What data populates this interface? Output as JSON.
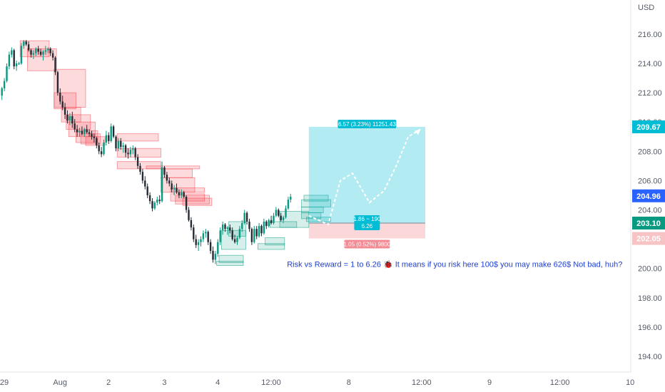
{
  "chart_data": {
    "type": "candlestick",
    "title": "",
    "currency": "USD",
    "y_ticks": [
      "216.00",
      "214.00",
      "212.00",
      "210.00",
      "208.00",
      "206.00",
      "204.00",
      "202.00",
      "200.00",
      "198.00",
      "196.00",
      "194.00"
    ],
    "ylim": [
      193,
      217.5
    ],
    "x_ticks": [
      {
        "label": "29",
        "i": 0
      },
      {
        "label": "Aug",
        "i": 23
      },
      {
        "label": "2",
        "i": 43
      },
      {
        "label": "3",
        "i": 66
      },
      {
        "label": "4",
        "i": 88
      },
      {
        "label": "12:00",
        "i": 110
      },
      {
        "label": "8",
        "i": 142
      },
      {
        "label": "12:00",
        "i": 172
      },
      {
        "label": "9",
        "i": 200
      },
      {
        "label": "12:00",
        "i": 229
      },
      {
        "label": "10",
        "i": 258
      }
    ],
    "candles": [
      [
        211.8,
        212.4,
        211.5,
        212.3
      ],
      [
        212.3,
        213.0,
        212.1,
        212.8
      ],
      [
        212.8,
        214.0,
        212.7,
        213.8
      ],
      [
        213.8,
        214.8,
        213.6,
        214.6
      ],
      [
        214.6,
        215.1,
        214.4,
        214.9
      ],
      [
        214.9,
        215.0,
        213.6,
        213.8
      ],
      [
        213.8,
        214.2,
        213.5,
        214.0
      ],
      [
        214.0,
        214.1,
        213.9,
        214.0
      ],
      [
        214.0,
        215.4,
        213.9,
        215.2
      ],
      [
        215.2,
        215.6,
        215.0,
        215.5
      ],
      [
        215.5,
        215.6,
        215.2,
        215.3
      ],
      [
        215.3,
        215.5,
        214.8,
        214.9
      ],
      [
        214.9,
        215.0,
        214.4,
        214.6
      ],
      [
        214.6,
        214.9,
        214.3,
        214.7
      ],
      [
        214.7,
        215.1,
        214.5,
        215.0
      ],
      [
        215.0,
        215.2,
        214.6,
        214.8
      ],
      [
        214.8,
        215.0,
        214.5,
        214.6
      ],
      [
        214.6,
        214.9,
        214.2,
        214.8
      ],
      [
        214.8,
        215.2,
        214.6,
        214.9
      ],
      [
        214.9,
        215.1,
        214.7,
        215.0
      ],
      [
        215.0,
        215.1,
        214.5,
        214.7
      ],
      [
        214.7,
        214.9,
        214.2,
        214.4
      ],
      [
        214.4,
        214.5,
        213.2,
        213.4
      ],
      [
        213.4,
        213.5,
        211.8,
        212.0
      ],
      [
        212.0,
        212.3,
        211.2,
        211.4
      ],
      [
        211.4,
        211.8,
        210.8,
        211.0
      ],
      [
        211.0,
        211.3,
        210.2,
        210.5
      ],
      [
        210.5,
        210.8,
        209.9,
        210.1
      ],
      [
        210.1,
        210.6,
        209.8,
        210.4
      ],
      [
        210.4,
        210.7,
        209.6,
        209.9
      ],
      [
        209.9,
        210.2,
        209.3,
        209.5
      ],
      [
        209.5,
        209.8,
        209.0,
        209.3
      ],
      [
        209.3,
        209.6,
        209.0,
        209.4
      ],
      [
        209.4,
        209.7,
        209.1,
        209.2
      ],
      [
        209.2,
        209.6,
        209.0,
        209.5
      ],
      [
        209.5,
        209.8,
        209.2,
        209.3
      ],
      [
        209.3,
        209.5,
        209.0,
        209.2
      ],
      [
        209.2,
        209.4,
        208.8,
        209.0
      ],
      [
        209.0,
        209.2,
        208.6,
        208.9
      ],
      [
        208.9,
        209.0,
        208.2,
        208.4
      ],
      [
        208.4,
        208.6,
        207.8,
        208.0
      ],
      [
        208.0,
        208.3,
        207.6,
        207.8
      ],
      [
        207.8,
        208.8,
        207.7,
        208.6
      ],
      [
        208.6,
        209.4,
        208.4,
        209.1
      ],
      [
        209.1,
        209.3,
        208.5,
        208.7
      ],
      [
        208.7,
        209.9,
        208.6,
        209.7
      ],
      [
        209.7,
        209.8,
        208.9,
        209.0
      ],
      [
        209.0,
        209.1,
        208.0,
        208.2
      ],
      [
        208.2,
        208.9,
        208.0,
        208.7
      ],
      [
        208.7,
        208.9,
        208.1,
        208.3
      ],
      [
        208.3,
        208.6,
        207.9,
        208.4
      ],
      [
        208.4,
        208.5,
        207.6,
        207.9
      ],
      [
        207.9,
        208.2,
        207.5,
        207.8
      ],
      [
        207.8,
        208.3,
        207.6,
        208.1
      ],
      [
        208.1,
        208.4,
        207.8,
        208.2
      ],
      [
        208.2,
        208.3,
        207.4,
        207.6
      ],
      [
        207.6,
        207.8,
        206.8,
        207.0
      ],
      [
        207.0,
        207.2,
        206.4,
        206.6
      ],
      [
        206.6,
        206.8,
        205.8,
        206.0
      ],
      [
        206.0,
        206.3,
        205.4,
        205.6
      ],
      [
        205.6,
        205.8,
        204.8,
        205.0
      ],
      [
        205.0,
        205.2,
        204.4,
        204.6
      ],
      [
        204.6,
        204.8,
        203.9,
        204.1
      ],
      [
        204.1,
        204.6,
        204.0,
        204.5
      ],
      [
        204.5,
        204.9,
        204.3,
        204.7
      ],
      [
        204.7,
        205.0,
        204.4,
        204.6
      ],
      [
        204.6,
        207.3,
        204.5,
        206.9
      ],
      [
        206.9,
        207.0,
        206.2,
        206.4
      ],
      [
        206.4,
        206.6,
        205.8,
        206.0
      ],
      [
        206.0,
        206.2,
        205.6,
        205.8
      ],
      [
        205.8,
        206.0,
        205.2,
        205.4
      ],
      [
        205.4,
        205.7,
        205.0,
        205.5
      ],
      [
        205.5,
        205.8,
        205.1,
        205.2
      ],
      [
        205.2,
        205.4,
        204.8,
        205.0
      ],
      [
        205.0,
        205.4,
        204.8,
        205.2
      ],
      [
        205.2,
        205.3,
        204.8,
        204.9
      ],
      [
        204.9,
        205.0,
        203.8,
        204.0
      ],
      [
        204.0,
        204.2,
        203.2,
        203.3
      ],
      [
        203.3,
        203.5,
        202.6,
        202.8
      ],
      [
        202.8,
        203.0,
        201.8,
        202.0
      ],
      [
        202.0,
        202.3,
        201.4,
        201.6
      ],
      [
        201.6,
        202.0,
        201.2,
        201.8
      ],
      [
        201.8,
        202.2,
        201.5,
        202.0
      ],
      [
        202.0,
        202.6,
        201.8,
        202.4
      ],
      [
        202.4,
        202.7,
        202.1,
        202.5
      ],
      [
        202.5,
        202.6,
        201.6,
        201.8
      ],
      [
        201.8,
        202.0,
        201.0,
        201.2
      ],
      [
        201.2,
        201.5,
        200.4,
        200.6
      ],
      [
        200.6,
        201.2,
        200.3,
        201.0
      ],
      [
        201.0,
        202.0,
        200.8,
        201.8
      ],
      [
        201.8,
        202.8,
        201.6,
        202.6
      ],
      [
        202.6,
        203.2,
        202.3,
        203.0
      ],
      [
        203.0,
        203.1,
        202.5,
        202.7
      ],
      [
        202.7,
        202.9,
        202.3,
        202.8
      ],
      [
        202.8,
        203.0,
        202.4,
        202.6
      ],
      [
        202.6,
        202.8,
        201.9,
        202.0
      ],
      [
        202.0,
        202.3,
        201.7,
        201.8
      ],
      [
        201.8,
        202.2,
        201.6,
        202.1
      ],
      [
        202.1,
        202.9,
        202.0,
        202.7
      ],
      [
        202.7,
        203.3,
        202.5,
        203.1
      ],
      [
        203.1,
        204.0,
        203.0,
        203.8
      ],
      [
        203.8,
        203.9,
        203.0,
        203.2
      ],
      [
        203.2,
        203.4,
        202.5,
        202.7
      ],
      [
        202.7,
        202.8,
        201.6,
        201.8
      ],
      [
        201.8,
        202.9,
        201.7,
        202.7
      ],
      [
        202.7,
        202.9,
        202.0,
        202.2
      ],
      [
        202.2,
        203.1,
        202.1,
        202.9
      ],
      [
        202.9,
        203.0,
        202.2,
        202.4
      ],
      [
        202.4,
        203.4,
        202.3,
        203.2
      ],
      [
        203.2,
        203.3,
        202.7,
        202.9
      ],
      [
        202.9,
        203.4,
        202.8,
        203.3
      ],
      [
        203.3,
        203.6,
        203.0,
        203.1
      ],
      [
        203.1,
        203.8,
        203.0,
        203.6
      ],
      [
        203.6,
        204.2,
        203.5,
        204.0
      ],
      [
        204.0,
        204.1,
        203.5,
        203.6
      ],
      [
        203.6,
        203.8,
        203.2,
        203.3
      ],
      [
        203.3,
        203.6,
        203.1,
        203.5
      ],
      [
        203.5,
        204.3,
        203.4,
        204.1
      ],
      [
        204.1,
        204.9,
        204.0,
        204.7
      ],
      [
        204.7,
        205.1,
        204.5,
        204.9
      ]
    ],
    "red_zones": [
      [
        8,
        20,
        215.55,
        214.45
      ],
      [
        11,
        23,
        215.0,
        213.5
      ],
      [
        22,
        35,
        213.6,
        211.0
      ],
      [
        22,
        31,
        212.0,
        210.9
      ],
      [
        25,
        33,
        211.0,
        210.0
      ],
      [
        27,
        37,
        210.5,
        209.5
      ],
      [
        28,
        39,
        210.0,
        209.0
      ],
      [
        31,
        40,
        209.4,
        208.6
      ],
      [
        33,
        41,
        209.2,
        208.5
      ],
      [
        35,
        43,
        209.0,
        208.4
      ],
      [
        48,
        65,
        209.2,
        208.7
      ],
      [
        48,
        66,
        208.2,
        207.6
      ],
      [
        48,
        66,
        207.3,
        206.8
      ],
      [
        60,
        82,
        207.0,
        206.8
      ],
      [
        66,
        79,
        206.8,
        206.2
      ],
      [
        66,
        80,
        206.2,
        205.2
      ],
      [
        70,
        84,
        205.5,
        205.2
      ],
      [
        70,
        84,
        205.1,
        204.6
      ],
      [
        72,
        86,
        205.0,
        204.4
      ],
      [
        75,
        87,
        204.8,
        204.3
      ]
    ],
    "green_zones": [
      [
        90,
        100,
        200.9,
        200.4
      ],
      [
        89,
        100,
        200.5,
        200.2
      ],
      [
        91,
        101,
        202.6,
        201.3
      ],
      [
        94,
        101,
        203.2,
        202.2
      ],
      [
        106,
        117,
        201.7,
        201.3
      ],
      [
        109,
        117,
        202.1,
        201.6
      ],
      [
        111,
        122,
        203.2,
        202.8
      ],
      [
        115,
        127,
        203.9,
        202.8
      ],
      [
        125,
        135,
        205.0,
        204.6
      ],
      [
        124,
        136,
        204.7,
        204.2
      ],
      [
        124,
        133,
        204.2,
        203.8
      ],
      [
        124,
        132,
        203.8,
        203.4
      ],
      [
        126,
        136,
        203.5,
        203.2
      ]
    ],
    "position": {
      "entry": 203.1,
      "target": 209.67,
      "stop": 202.05,
      "start_i": 127,
      "end_i": 175,
      "target_label": "6.57 (3.23%) 11251.43",
      "stop_label": "1.05 (0.52%) 9800",
      "center_label_line1": "1.86 ~ 190",
      "center_label_line2": "6.26"
    },
    "projection": [
      [
        127,
        203.6
      ],
      [
        135,
        203.0
      ],
      [
        140,
        206.0
      ],
      [
        145,
        206.5
      ],
      [
        152,
        204.5
      ],
      [
        158,
        205.3
      ],
      [
        163,
        207.0
      ],
      [
        168,
        209.0
      ],
      [
        173,
        209.5
      ]
    ],
    "price_tags": [
      {
        "value": 209.67,
        "label": "209.67",
        "color": "#00bcd4"
      },
      {
        "value": 204.96,
        "label": "204.96",
        "color": "#2962ff"
      },
      {
        "value": 203.1,
        "label": "203.10",
        "color": "#089981"
      },
      {
        "value": 202.05,
        "label": "202.05",
        "color": "#f7c3c5",
        "text_color": "#222222"
      }
    ],
    "annotation": {
      "text": "Risk vs Reward = 1 to 6.26 🐞 It means if you risk here 100$ you may make 626$ Not bad, huh?",
      "i": 118,
      "value": 200.1
    }
  }
}
